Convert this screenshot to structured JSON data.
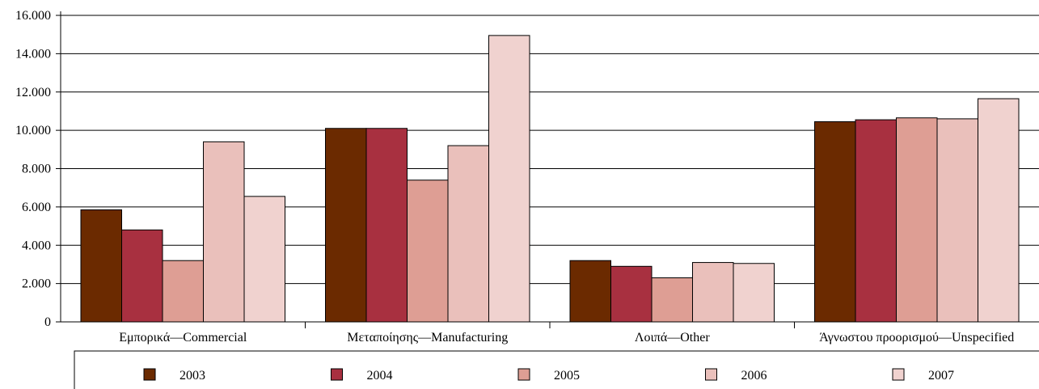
{
  "chart_data": {
    "type": "bar",
    "categories": [
      "Εμπορικά—Commercial",
      "Μεταποίησης—Manufacturing",
      "Λοιπά—Other",
      "Άγνωστου προορισμού—Unspecified"
    ],
    "series": [
      {
        "name": "2003",
        "color": "#6b2a00",
        "values": [
          5850,
          10100,
          3200,
          10450
        ]
      },
      {
        "name": "2004",
        "color": "#a83040",
        "values": [
          4800,
          10100,
          2900,
          10550
        ]
      },
      {
        "name": "2005",
        "color": "#de9e94",
        "values": [
          3200,
          7400,
          2300,
          10650
        ]
      },
      {
        "name": "2006",
        "color": "#eac0bb",
        "values": [
          9400,
          9200,
          3100,
          10600
        ]
      },
      {
        "name": "2007",
        "color": "#f0d2cf",
        "values": [
          6550,
          14950,
          3050,
          11650
        ]
      }
    ],
    "yticks": [
      "0",
      "2.000",
      "4.000",
      "6.000",
      "8.000",
      "10.000",
      "12.000",
      "14.000",
      "16.000"
    ],
    "ylim": [
      0,
      16000
    ],
    "grid": true,
    "legend": "bottom"
  }
}
